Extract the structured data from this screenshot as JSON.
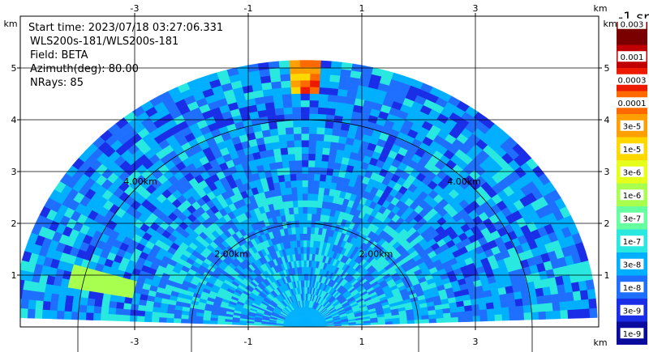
{
  "chart_data": {
    "type": "heatmap",
    "subtype": "radar-rhi-sector",
    "info": {
      "start_time": "Start time: 2023/07/18 03:27:06.331",
      "instrument": "WLS200s-181/WLS200s-181",
      "field": "Field: BETA",
      "azimuth": "Azimuth(deg): 80.00",
      "nrays": "NRays: 85"
    },
    "x_unit": "km",
    "y_unit": "km",
    "xlim": [
      -4.0,
      4.0
    ],
    "ylim": [
      0.0,
      6.0
    ],
    "x_ticks": [
      -3,
      -1,
      1,
      3
    ],
    "y_ticks": [
      1,
      2,
      3,
      4,
      5
    ],
    "grid": true,
    "range_rings": [
      {
        "radius_km": 2,
        "label": "2.00km"
      },
      {
        "radius_km": 4,
        "label": "4.00km"
      }
    ],
    "sweep": {
      "max_range_km": 5.15,
      "elevation_deg": [
        2,
        178
      ],
      "nrays": 85
    },
    "colorbar": {
      "title": "-1 sr",
      "labels": [
        "0.003",
        "0.001",
        "0.0003",
        "0.0001",
        "3e-5",
        "1e-5",
        "3e-6",
        "1e-6",
        "3e-7",
        "1e-7",
        "3e-8",
        "1e-8",
        "3e-9",
        "1e-9"
      ],
      "colors": [
        "#7a0000",
        "#c00000",
        "#ee1a00",
        "#ff6a00",
        "#ffa000",
        "#ffd800",
        "#e6ff1a",
        "#a8ff4d",
        "#66ffa0",
        "#28e8e0",
        "#00b0ff",
        "#1f6fff",
        "#1a2ee8",
        "#0a0a9c"
      ]
    }
  }
}
